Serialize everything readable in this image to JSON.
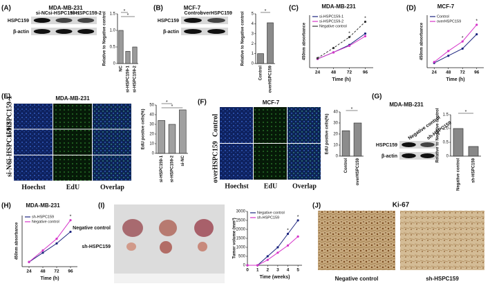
{
  "panels": {
    "A": {
      "label": "(A)",
      "title": "MDA-MB-231",
      "blot": {
        "lanes": [
          "si-NC",
          "si-HSPC159-1",
          "si-HSPC159-2"
        ],
        "rows": [
          "HSPC159",
          "β-actin"
        ]
      }
    },
    "B": {
      "label": "(B)",
      "title": "MCF-7",
      "blot": {
        "lanes": [
          "Control",
          "overHSPC159"
        ],
        "rows": [
          "HSPC159",
          "β-actin"
        ]
      }
    },
    "C": {
      "label": "(C)",
      "title": "MDA-MB-231"
    },
    "D": {
      "label": "(D)",
      "title": "MCF-7"
    },
    "E": {
      "label": "(E)",
      "title": "MDA-MB-231",
      "rows": [
        "si-HSPC159-1",
        "si-HSPC159-2",
        "si-NC"
      ],
      "columns": [
        "Hoechst",
        "EdU",
        "Overlap"
      ]
    },
    "F": {
      "label": "(F)",
      "title": "MCF-7",
      "rows": [
        "Control",
        "overHSPC159"
      ],
      "columns": [
        "Hoechst",
        "EdU",
        "Overlap"
      ]
    },
    "G": {
      "label": "(G)",
      "title": "MDA-MB-231",
      "blot": {
        "lanes": [
          "Negative control",
          "sh-HSPC159"
        ],
        "rows": [
          "HSPC159",
          "β-actin"
        ]
      }
    },
    "H": {
      "label": "(H)",
      "title": "MDA-MB-231"
    },
    "I": {
      "label": "(I)",
      "rows": [
        "Negative control",
        "sh-HSPC159"
      ]
    },
    "J": {
      "label": "(J)",
      "title": "Ki-67",
      "captions": [
        "Negative control",
        "sh-HSPC159"
      ]
    }
  },
  "chart_data": [
    {
      "type": "bar",
      "ylabel": "Relative to Negative control",
      "categories": [
        "NC",
        "si-HSPC159-1",
        "si-HSPC159-2"
      ],
      "values": [
        1.0,
        0.37,
        0.5
      ],
      "color": "#9a9a9a",
      "ylim": [
        0,
        1.5
      ],
      "yticks": [
        0,
        0.5,
        {
          "value": 1,
          "label": "1.0"
        },
        1.5
      ],
      "annotations": [
        "*",
        "*"
      ]
    },
    {
      "type": "bar",
      "ylabel": "Relative to Negative control",
      "categories": [
        "Control",
        "overHSPC159"
      ],
      "values": [
        1.0,
        4.1
      ],
      "color": "#8a8a8a",
      "ylim": [
        0,
        5
      ],
      "yticks": [
        0,
        1,
        2,
        3,
        4,
        5
      ],
      "annotations": [
        "*"
      ]
    },
    {
      "type": "line",
      "xlabel": "Time (h)",
      "ylabel": "450nm absorbance",
      "x": [
        24,
        48,
        72,
        96
      ],
      "xlim": [
        12,
        108
      ],
      "xticks": [
        24,
        48,
        72,
        96
      ],
      "ylim": [
        0.2,
        1.4
      ],
      "series": [
        {
          "name": "si-HSPC159-1",
          "color": "#1a237e",
          "values": [
            0.4,
            0.55,
            0.72,
            0.98
          ]
        },
        {
          "name": "si-HSPC159-2",
          "color": "#d633c9",
          "values": [
            0.4,
            0.55,
            0.7,
            0.92
          ]
        },
        {
          "name": "Negative control",
          "color": "#333333",
          "values": [
            0.42,
            0.65,
            0.9,
            1.25
          ]
        }
      ],
      "annotations": [
        "*",
        "*"
      ]
    },
    {
      "type": "line",
      "xlabel": "Time (h)",
      "ylabel": "450nm absorbance",
      "x": [
        24,
        48,
        72,
        96
      ],
      "xlim": [
        12,
        108
      ],
      "xticks": [
        24,
        48,
        72,
        96
      ],
      "ylim": [
        0.2,
        1.3
      ],
      "series": [
        {
          "name": "Control",
          "color": "#1a237e",
          "values": [
            0.3,
            0.45,
            0.6,
            0.9
          ]
        },
        {
          "name": "overHSPC159",
          "color": "#d633c9",
          "values": [
            0.32,
            0.55,
            0.75,
            1.1
          ]
        }
      ],
      "annotations": [
        "*",
        "*"
      ]
    },
    {
      "type": "bar",
      "ylabel": "EdU postive cells(%)",
      "categories": [
        "si-HSPC159-1",
        "si-HSPC159-2",
        "si-NC"
      ],
      "values": [
        34,
        30,
        45
      ],
      "color": "#a0a0a0",
      "ylim": [
        0,
        50
      ],
      "yticks": [
        0,
        10,
        20,
        30,
        40,
        50
      ],
      "annotations": [
        "*",
        "*"
      ]
    },
    {
      "type": "bar",
      "ylabel": "EdU postive cells(%)",
      "categories": [
        "Control",
        "overHSPC159"
      ],
      "values": [
        23,
        30
      ],
      "color": "#8c8c8c",
      "ylim": [
        0,
        40
      ],
      "yticks": [
        0,
        10,
        20,
        30,
        40
      ],
      "annotations": [
        "*"
      ]
    },
    {
      "type": "bar",
      "ylabel": "Relative to Negative control",
      "categories": [
        "Negative control",
        "sh-HSPC159"
      ],
      "values": [
        1.0,
        0.35
      ],
      "color": "#888888",
      "ylim": [
        0,
        1.5
      ],
      "yticks": [
        0,
        0.5,
        {
          "value": 1,
          "label": "1.0"
        },
        1.5
      ],
      "annotations": [
        "*"
      ]
    },
    {
      "type": "line",
      "xlabel": "Time (h)",
      "ylabel": "450nm absorbance",
      "x": [
        24,
        48,
        72,
        96
      ],
      "xlim": [
        12,
        108
      ],
      "xticks": [
        24,
        48,
        72,
        96
      ],
      "ylim": [
        0.2,
        1.3
      ],
      "series": [
        {
          "name": "sh-HSPC159",
          "color": "#1a237e",
          "values": [
            0.3,
            0.5,
            0.7,
            0.95
          ]
        },
        {
          "name": "Negative control",
          "color": "#d633c9",
          "values": [
            0.3,
            0.55,
            0.8,
            1.2
          ]
        }
      ],
      "annotations": [
        "*"
      ]
    },
    {
      "type": "line",
      "xlabel": "Time (weeks)",
      "ylabel": "Tumor volume (mm³)",
      "x": [
        0,
        1,
        2,
        3,
        4,
        5
      ],
      "xlim": [
        0,
        5.4
      ],
      "xticks": [
        0,
        1,
        2,
        3,
        4,
        5
      ],
      "ylim": [
        0,
        3000
      ],
      "yticks": [
        0,
        500,
        1000,
        1500,
        2000,
        2500,
        3000
      ],
      "series": [
        {
          "name": "Negative control",
          "color": "#1a237e",
          "values": [
            0,
            0,
            500,
            1000,
            1750,
            2500
          ]
        },
        {
          "name": "sh-HSPC159",
          "color": "#d633c9",
          "values": [
            0,
            0,
            300,
            700,
            1100,
            1600
          ]
        }
      ],
      "annotations": [
        "*",
        "*"
      ]
    }
  ]
}
